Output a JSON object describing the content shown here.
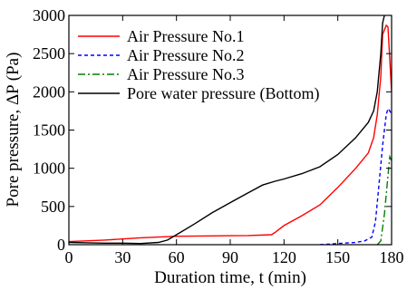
{
  "chart_data": {
    "type": "line",
    "xlabel": "Duration time, t (min)",
    "ylabel": "Pore pressure, ΔP (Pa)",
    "xlim": [
      0,
      180
    ],
    "ylim": [
      0,
      3000
    ],
    "x_ticks": [
      "0",
      "30",
      "60",
      "90",
      "120",
      "150",
      "180"
    ],
    "y_ticks": [
      "0",
      "500",
      "1000",
      "1500",
      "2000",
      "2500",
      "3000"
    ],
    "grid": false,
    "legend_position": "top-left",
    "series": [
      {
        "name": "Air Pressure No.1",
        "color": "#ff0000",
        "dash": "solid",
        "points": [
          [
            0,
            40
          ],
          [
            20,
            60
          ],
          [
            40,
            90
          ],
          [
            60,
            110
          ],
          [
            80,
            115
          ],
          [
            100,
            120
          ],
          [
            113,
            130
          ],
          [
            115,
            160
          ],
          [
            120,
            250
          ],
          [
            130,
            380
          ],
          [
            140,
            520
          ],
          [
            150,
            750
          ],
          [
            160,
            1000
          ],
          [
            167,
            1200
          ],
          [
            170,
            1400
          ],
          [
            172,
            1700
          ],
          [
            174,
            2200
          ],
          [
            175,
            2750
          ],
          [
            177,
            2870
          ],
          [
            178,
            2850
          ],
          [
            180,
            2000
          ]
        ]
      },
      {
        "name": "Air Pressure No.2",
        "color": "#0000ff",
        "dash": "dashed",
        "points": [
          [
            140,
            0
          ],
          [
            150,
            15
          ],
          [
            160,
            30
          ],
          [
            165,
            50
          ],
          [
            169,
            100
          ],
          [
            171,
            300
          ],
          [
            173,
            800
          ],
          [
            175,
            1300
          ],
          [
            177,
            1700
          ],
          [
            178,
            1780
          ],
          [
            179,
            1750
          ],
          [
            180,
            1700
          ]
        ]
      },
      {
        "name": "Air Pressure No.3",
        "color": "#008000",
        "dash": "dashdot",
        "points": [
          [
            172,
            0
          ],
          [
            174,
            50
          ],
          [
            176,
            400
          ],
          [
            178,
            900
          ],
          [
            179,
            1150
          ],
          [
            180,
            1100
          ]
        ]
      },
      {
        "name": "Pore water pressure (Bottom)",
        "color": "#000000",
        "dash": "solid",
        "points": [
          [
            0,
            30
          ],
          [
            10,
            25
          ],
          [
            20,
            20
          ],
          [
            30,
            20
          ],
          [
            40,
            15
          ],
          [
            50,
            30
          ],
          [
            55,
            60
          ],
          [
            60,
            130
          ],
          [
            70,
            270
          ],
          [
            80,
            420
          ],
          [
            90,
            550
          ],
          [
            100,
            680
          ],
          [
            108,
            780
          ],
          [
            115,
            830
          ],
          [
            120,
            860
          ],
          [
            130,
            930
          ],
          [
            140,
            1020
          ],
          [
            150,
            1180
          ],
          [
            160,
            1400
          ],
          [
            167,
            1600
          ],
          [
            170,
            1750
          ],
          [
            172,
            2000
          ],
          [
            174,
            2500
          ],
          [
            175,
            2900
          ],
          [
            176,
            3000
          ]
        ]
      }
    ]
  }
}
